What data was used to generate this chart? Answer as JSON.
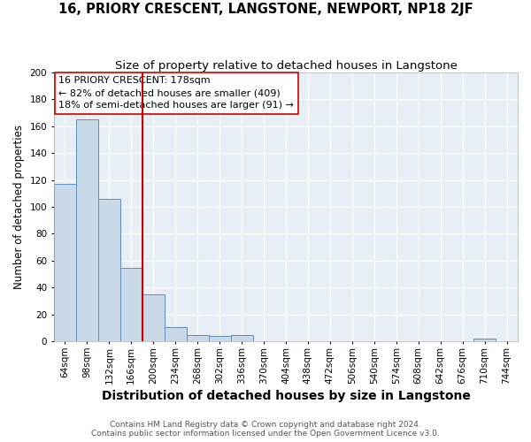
{
  "title": "16, PRIORY CRESCENT, LANGSTONE, NEWPORT, NP18 2JF",
  "subtitle": "Size of property relative to detached houses in Langstone",
  "xlabel": "Distribution of detached houses by size in Langstone",
  "ylabel": "Number of detached properties",
  "bar_labels": [
    "64sqm",
    "98sqm",
    "132sqm",
    "166sqm",
    "200sqm",
    "234sqm",
    "268sqm",
    "302sqm",
    "336sqm",
    "370sqm",
    "404sqm",
    "438sqm",
    "472sqm",
    "506sqm",
    "540sqm",
    "574sqm",
    "608sqm",
    "642sqm",
    "676sqm",
    "710sqm",
    "744sqm"
  ],
  "bar_values": [
    117,
    165,
    106,
    55,
    35,
    11,
    5,
    4,
    5,
    0,
    0,
    0,
    0,
    0,
    0,
    0,
    0,
    0,
    0,
    2,
    0
  ],
  "bar_color": "#c9d9e8",
  "bar_edge_color": "#5b8db8",
  "background_color": "#e8eef5",
  "grid_color": "#ffffff",
  "annotation_text": "16 PRIORY CRESCENT: 178sqm\n← 82% of detached houses are smaller (409)\n18% of semi-detached houses are larger (91) →",
  "annotation_box_edge": "#cc0000",
  "vline_color": "#cc0000",
  "ylim": [
    0,
    200
  ],
  "yticks": [
    0,
    20,
    40,
    60,
    80,
    100,
    120,
    140,
    160,
    180,
    200
  ],
  "footer_text": "Contains HM Land Registry data © Crown copyright and database right 2024.\nContains public sector information licensed under the Open Government Licence v3.0.",
  "title_fontsize": 10.5,
  "subtitle_fontsize": 9.5,
  "xlabel_fontsize": 10,
  "ylabel_fontsize": 8.5,
  "tick_fontsize": 7.5,
  "annotation_fontsize": 8,
  "footer_fontsize": 6.5
}
